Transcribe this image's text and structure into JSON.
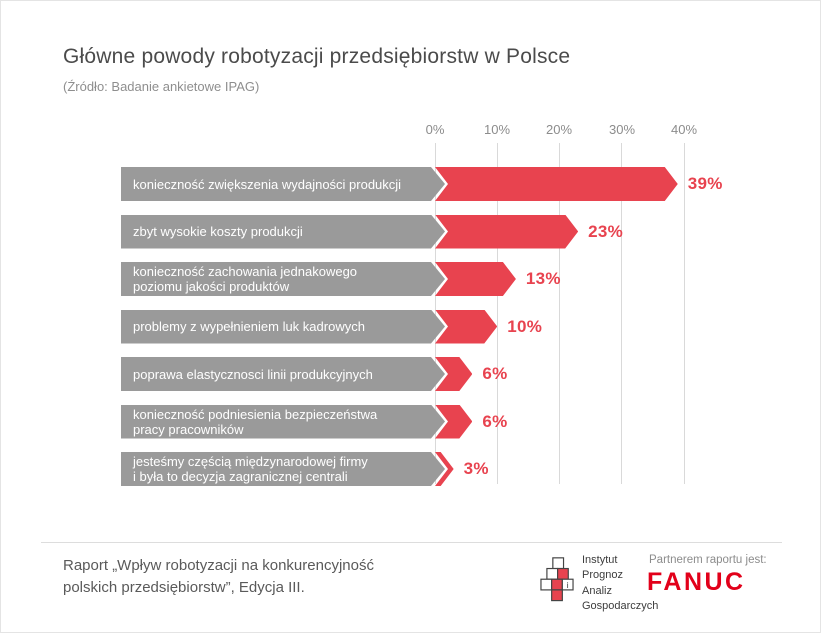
{
  "page": {
    "title": "Główne powody robotyzacji przedsiębiorstw w Polsce",
    "subtitle": "(Źródło: Badanie ankietowe IPAG)"
  },
  "chart_data": {
    "type": "bar",
    "orientation": "horizontal",
    "title": "Główne powody robotyzacji przedsiębiorstw w Polsce",
    "source": "(Źródło: Badanie ankietowe IPAG)",
    "xlim": [
      0,
      40
    ],
    "grid": true,
    "x_ticks": [
      "0%",
      "10%",
      "20%",
      "30%",
      "40%"
    ],
    "bar_color": "#e8434f",
    "label_box_color": "#9a9a9a",
    "categories": [
      "konieczność zwiększenia wydajności produkcji",
      "zbyt wysokie koszty produkcji",
      "konieczność zachowania jednakowego poziomu jakości produktów",
      "problemy z wypełnieniem luk kadrowych",
      "poprawa elastycznosci linii produkcyjnych",
      "konieczność podniesienia bezpieczeństwa pracy pracowników",
      "jesteśmy częścią międzynarodowej firmy i była to decyzja zagranicznej centrali"
    ],
    "values": [
      39,
      23,
      13,
      10,
      6,
      6,
      3
    ],
    "rows": [
      {
        "label_line1": "konieczność zwiększenia wydajności produkcji",
        "label_line2": "",
        "value": 39,
        "value_label": "39%"
      },
      {
        "label_line1": "zbyt wysokie koszty produkcji",
        "label_line2": "",
        "value": 23,
        "value_label": "23%"
      },
      {
        "label_line1": "konieczność zachowania jednakowego",
        "label_line2": "poziomu jakości produktów",
        "value": 13,
        "value_label": "13%"
      },
      {
        "label_line1": "problemy z wypełnieniem luk kadrowych",
        "label_line2": "",
        "value": 10,
        "value_label": "10%"
      },
      {
        "label_line1": "poprawa elastycznosci linii produkcyjnych",
        "label_line2": "",
        "value": 6,
        "value_label": "6%"
      },
      {
        "label_line1": "konieczność podniesienia bezpieczeństwa",
        "label_line2": "pracy pracowników",
        "value": 6,
        "value_label": "6%"
      },
      {
        "label_line1": "jesteśmy częścią międzynarodowej firmy",
        "label_line2": "i była to decyzja zagranicznej centrali",
        "value": 3,
        "value_label": "3%"
      }
    ]
  },
  "footer": {
    "report_line1": "Raport „Wpływ robotyzacji na konkurencyjność",
    "report_line2": "polskich przedsiębiorstw”, Edycja III.",
    "ipag_lines": [
      "Instytut",
      "Prognoz",
      "Analiz",
      "Gospodarczych"
    ],
    "partner_label": "Partnerem raportu jest:",
    "partner_name": "FANUC",
    "partner_color": "#e2001a"
  }
}
